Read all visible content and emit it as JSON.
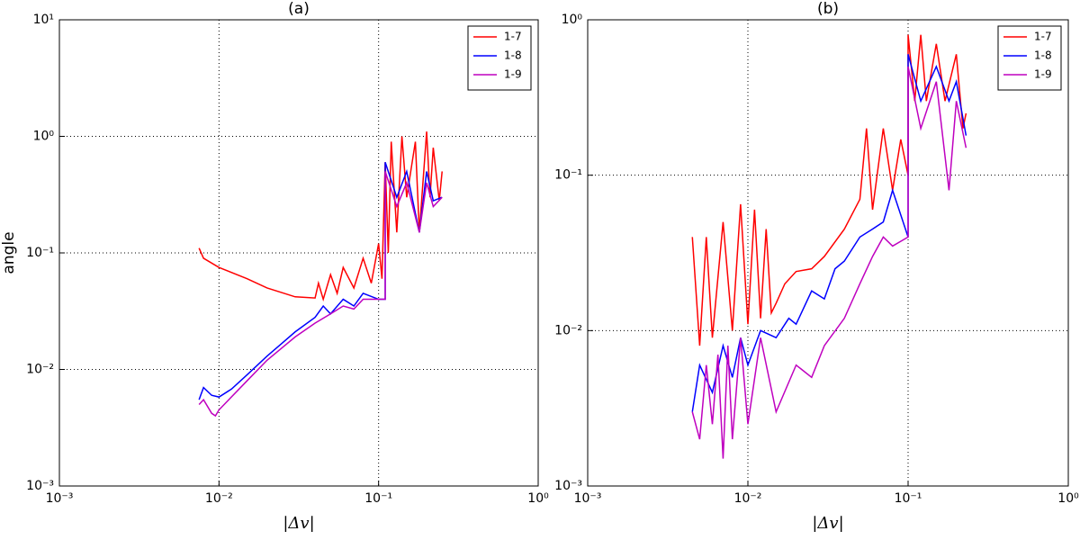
{
  "chart_data": [
    {
      "type": "line",
      "title": "(a)",
      "xlabel": "|Δv|",
      "ylabel": "angle",
      "xscale": "log",
      "yscale": "log",
      "grid": true,
      "legend": "upper right",
      "xlim": [
        0.001,
        1
      ],
      "ylim": [
        0.001,
        10
      ],
      "xticks": [
        {
          "value": 0.001,
          "label": "10⁻³"
        },
        {
          "value": 0.01,
          "label": "10⁻²"
        },
        {
          "value": 0.1,
          "label": "10⁻¹"
        },
        {
          "value": 1,
          "label": "10⁰"
        }
      ],
      "yticks": [
        {
          "value": 0.001,
          "label": "10⁻³"
        },
        {
          "value": 0.01,
          "label": "10⁻²"
        },
        {
          "value": 0.1,
          "label": "10⁻¹"
        },
        {
          "value": 1,
          "label": "10⁰"
        },
        {
          "value": 10,
          "label": "10¹"
        }
      ],
      "series": [
        {
          "name": "1-7",
          "color": "#ff0000",
          "x": [
            0.0075,
            0.008,
            0.01,
            0.015,
            0.02,
            0.03,
            0.04,
            0.042,
            0.045,
            0.05,
            0.055,
            0.06,
            0.07,
            0.08,
            0.09,
            0.1,
            0.105,
            0.11,
            0.115,
            0.12,
            0.13,
            0.14,
            0.15,
            0.17,
            0.18,
            0.2,
            0.21,
            0.22,
            0.24,
            0.25
          ],
          "y": [
            0.11,
            0.09,
            0.075,
            0.06,
            0.05,
            0.042,
            0.041,
            0.055,
            0.04,
            0.065,
            0.045,
            0.075,
            0.05,
            0.09,
            0.055,
            0.12,
            0.06,
            0.6,
            0.1,
            0.9,
            0.15,
            1.0,
            0.3,
            0.9,
            0.15,
            1.1,
            0.3,
            0.8,
            0.28,
            0.5
          ]
        },
        {
          "name": "1-8",
          "color": "#0000ff",
          "x": [
            0.0075,
            0.008,
            0.009,
            0.01,
            0.012,
            0.015,
            0.02,
            0.03,
            0.04,
            0.045,
            0.05,
            0.06,
            0.07,
            0.08,
            0.1,
            0.11,
            0.11,
            0.13,
            0.15,
            0.18,
            0.2,
            0.22,
            0.25
          ],
          "y": [
            0.0055,
            0.007,
            0.006,
            0.0058,
            0.0068,
            0.009,
            0.013,
            0.021,
            0.028,
            0.035,
            0.03,
            0.04,
            0.035,
            0.045,
            0.04,
            0.04,
            0.6,
            0.3,
            0.5,
            0.15,
            0.5,
            0.28,
            0.3
          ]
        },
        {
          "name": "1-9",
          "color": "#bf00bf",
          "x": [
            0.0075,
            0.008,
            0.009,
            0.0095,
            0.01,
            0.015,
            0.02,
            0.03,
            0.04,
            0.05,
            0.06,
            0.07,
            0.08,
            0.1,
            0.11,
            0.11,
            0.13,
            0.15,
            0.18,
            0.2,
            0.22,
            0.25
          ],
          "y": [
            0.005,
            0.0055,
            0.0042,
            0.004,
            0.0045,
            0.008,
            0.012,
            0.019,
            0.025,
            0.03,
            0.035,
            0.033,
            0.04,
            0.04,
            0.04,
            0.5,
            0.25,
            0.4,
            0.15,
            0.4,
            0.25,
            0.3
          ]
        }
      ]
    },
    {
      "type": "line",
      "title": "(b)",
      "xlabel": "|Δv|",
      "xscale": "log",
      "yscale": "log",
      "grid": true,
      "legend": "upper right",
      "xlim": [
        0.001,
        1
      ],
      "ylim": [
        0.001,
        1
      ],
      "xticks": [
        {
          "value": 0.001,
          "label": "10⁻³"
        },
        {
          "value": 0.01,
          "label": "10⁻²"
        },
        {
          "value": 0.1,
          "label": "10⁻¹"
        },
        {
          "value": 1,
          "label": "10⁰"
        }
      ],
      "yticks": [
        {
          "value": 0.001,
          "label": "10⁻³"
        },
        {
          "value": 0.01,
          "label": "10⁻²"
        },
        {
          "value": 0.1,
          "label": "10⁻¹"
        },
        {
          "value": 1,
          "label": "10⁰"
        }
      ],
      "series": [
        {
          "name": "1-7",
          "color": "#ff0000",
          "x": [
            0.0045,
            0.005,
            0.0055,
            0.006,
            0.007,
            0.008,
            0.009,
            0.01,
            0.011,
            0.012,
            0.013,
            0.014,
            0.015,
            0.017,
            0.02,
            0.025,
            0.03,
            0.04,
            0.05,
            0.055,
            0.06,
            0.07,
            0.08,
            0.09,
            0.1,
            0.1,
            0.11,
            0.12,
            0.13,
            0.15,
            0.17,
            0.2,
            0.22,
            0.23
          ],
          "y": [
            0.04,
            0.008,
            0.04,
            0.009,
            0.05,
            0.01,
            0.065,
            0.011,
            0.06,
            0.012,
            0.045,
            0.013,
            0.015,
            0.02,
            0.024,
            0.025,
            0.03,
            0.045,
            0.07,
            0.2,
            0.06,
            0.2,
            0.08,
            0.17,
            0.1,
            0.8,
            0.3,
            0.8,
            0.3,
            0.7,
            0.3,
            0.6,
            0.2,
            0.25
          ]
        },
        {
          "name": "1-8",
          "color": "#0000ff",
          "x": [
            0.0045,
            0.005,
            0.006,
            0.007,
            0.008,
            0.009,
            0.01,
            0.012,
            0.015,
            0.018,
            0.02,
            0.025,
            0.03,
            0.035,
            0.04,
            0.05,
            0.06,
            0.07,
            0.08,
            0.1,
            0.1,
            0.12,
            0.15,
            0.18,
            0.2,
            0.23
          ],
          "y": [
            0.003,
            0.006,
            0.004,
            0.008,
            0.005,
            0.009,
            0.006,
            0.01,
            0.009,
            0.012,
            0.011,
            0.018,
            0.016,
            0.025,
            0.028,
            0.04,
            0.045,
            0.05,
            0.08,
            0.04,
            0.6,
            0.3,
            0.5,
            0.3,
            0.4,
            0.18
          ]
        },
        {
          "name": "1-9",
          "color": "#bf00bf",
          "x": [
            0.0045,
            0.005,
            0.0055,
            0.006,
            0.0065,
            0.007,
            0.0075,
            0.008,
            0.009,
            0.01,
            0.012,
            0.015,
            0.02,
            0.025,
            0.03,
            0.04,
            0.05,
            0.06,
            0.07,
            0.08,
            0.1,
            0.1,
            0.12,
            0.15,
            0.18,
            0.2,
            0.23
          ],
          "y": [
            0.003,
            0.002,
            0.006,
            0.0025,
            0.007,
            0.0015,
            0.008,
            0.002,
            0.009,
            0.0025,
            0.009,
            0.003,
            0.006,
            0.005,
            0.008,
            0.012,
            0.02,
            0.03,
            0.04,
            0.035,
            0.04,
            0.5,
            0.2,
            0.4,
            0.08,
            0.3,
            0.15
          ]
        }
      ]
    }
  ]
}
